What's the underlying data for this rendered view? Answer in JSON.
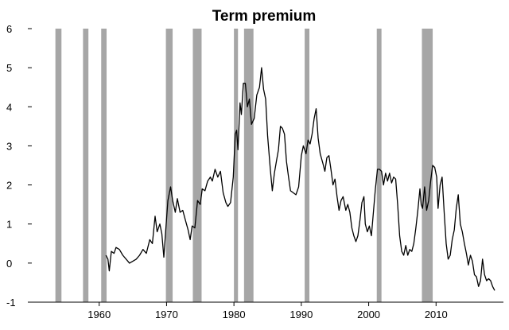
{
  "chart_data": {
    "type": "line",
    "title": "Term premium",
    "xlabel": "",
    "ylabel": "",
    "xlim": [
      1950,
      2020
    ],
    "ylim": [
      -1,
      6
    ],
    "x_ticks": [
      1960,
      1970,
      1980,
      1990,
      2000,
      2010
    ],
    "y_ticks": [
      -1,
      0,
      1,
      2,
      3,
      4,
      5,
      6
    ],
    "grid": false,
    "legend": "none",
    "colors": {
      "line": "#000000",
      "recession_band": "#a6a6a6"
    },
    "recession_bands": [
      [
        1953.5,
        1954.4
      ],
      [
        1957.6,
        1958.4
      ],
      [
        1960.3,
        1961.1
      ],
      [
        1969.9,
        1970.9
      ],
      [
        1973.9,
        1975.2
      ],
      [
        1980.0,
        1980.6
      ],
      [
        1981.5,
        1982.9
      ],
      [
        1990.5,
        1991.2
      ],
      [
        2001.2,
        2001.9
      ],
      [
        2007.9,
        2009.5
      ]
    ],
    "series": [
      {
        "values": [
          [
            1961.0,
            0.2
          ],
          [
            1961.3,
            0.1
          ],
          [
            1961.5,
            -0.2
          ],
          [
            1961.8,
            0.3
          ],
          [
            1962.2,
            0.25
          ],
          [
            1962.5,
            0.4
          ],
          [
            1963.0,
            0.35
          ],
          [
            1963.5,
            0.2
          ],
          [
            1964.0,
            0.1
          ],
          [
            1964.5,
            0.0
          ],
          [
            1965.0,
            0.05
          ],
          [
            1965.5,
            0.1
          ],
          [
            1966.0,
            0.2
          ],
          [
            1966.5,
            0.35
          ],
          [
            1967.0,
            0.25
          ],
          [
            1967.5,
            0.6
          ],
          [
            1967.9,
            0.5
          ],
          [
            1968.3,
            1.2
          ],
          [
            1968.6,
            0.8
          ],
          [
            1969.0,
            1.0
          ],
          [
            1969.3,
            0.75
          ],
          [
            1969.6,
            0.15
          ],
          [
            1969.9,
            0.9
          ],
          [
            1970.2,
            1.6
          ],
          [
            1970.6,
            1.95
          ],
          [
            1970.9,
            1.6
          ],
          [
            1971.3,
            1.3
          ],
          [
            1971.6,
            1.65
          ],
          [
            1972.0,
            1.3
          ],
          [
            1972.4,
            1.35
          ],
          [
            1972.8,
            1.1
          ],
          [
            1973.2,
            0.85
          ],
          [
            1973.5,
            0.6
          ],
          [
            1973.8,
            0.95
          ],
          [
            1974.2,
            0.9
          ],
          [
            1974.6,
            1.6
          ],
          [
            1975.0,
            1.5
          ],
          [
            1975.3,
            1.9
          ],
          [
            1975.7,
            1.85
          ],
          [
            1976.1,
            2.1
          ],
          [
            1976.5,
            2.2
          ],
          [
            1976.8,
            2.1
          ],
          [
            1977.2,
            2.4
          ],
          [
            1977.6,
            2.2
          ],
          [
            1978.0,
            2.35
          ],
          [
            1978.4,
            1.8
          ],
          [
            1978.8,
            1.55
          ],
          [
            1979.1,
            1.45
          ],
          [
            1979.5,
            1.55
          ],
          [
            1979.9,
            2.2
          ],
          [
            1980.2,
            3.3
          ],
          [
            1980.4,
            3.4
          ],
          [
            1980.6,
            2.9
          ],
          [
            1980.9,
            4.1
          ],
          [
            1981.1,
            3.8
          ],
          [
            1981.4,
            4.6
          ],
          [
            1981.7,
            4.6
          ],
          [
            1982.0,
            4.0
          ],
          [
            1982.3,
            4.2
          ],
          [
            1982.6,
            3.55
          ],
          [
            1983.0,
            3.7
          ],
          [
            1983.4,
            4.3
          ],
          [
            1983.8,
            4.5
          ],
          [
            1984.1,
            5.0
          ],
          [
            1984.4,
            4.45
          ],
          [
            1984.7,
            4.2
          ],
          [
            1985.0,
            3.25
          ],
          [
            1985.4,
            2.4
          ],
          [
            1985.7,
            1.85
          ],
          [
            1986.0,
            2.3
          ],
          [
            1986.3,
            2.6
          ],
          [
            1986.6,
            2.9
          ],
          [
            1986.9,
            3.5
          ],
          [
            1987.2,
            3.45
          ],
          [
            1987.5,
            3.3
          ],
          [
            1987.8,
            2.6
          ],
          [
            1988.1,
            2.2
          ],
          [
            1988.4,
            1.85
          ],
          [
            1988.8,
            1.8
          ],
          [
            1989.2,
            1.75
          ],
          [
            1989.6,
            1.95
          ],
          [
            1990.0,
            2.75
          ],
          [
            1990.3,
            3.0
          ],
          [
            1990.7,
            2.8
          ],
          [
            1991.0,
            3.15
          ],
          [
            1991.3,
            3.05
          ],
          [
            1991.6,
            3.3
          ],
          [
            1991.9,
            3.7
          ],
          [
            1992.2,
            3.95
          ],
          [
            1992.5,
            3.2
          ],
          [
            1992.8,
            2.8
          ],
          [
            1993.2,
            2.55
          ],
          [
            1993.5,
            2.35
          ],
          [
            1993.8,
            2.7
          ],
          [
            1994.1,
            2.75
          ],
          [
            1994.4,
            2.4
          ],
          [
            1994.7,
            2.0
          ],
          [
            1995.0,
            2.15
          ],
          [
            1995.3,
            1.7
          ],
          [
            1995.6,
            1.35
          ],
          [
            1995.9,
            1.6
          ],
          [
            1996.2,
            1.7
          ],
          [
            1996.6,
            1.35
          ],
          [
            1996.9,
            1.5
          ],
          [
            1997.2,
            1.3
          ],
          [
            1997.5,
            0.9
          ],
          [
            1997.8,
            0.7
          ],
          [
            1998.1,
            0.55
          ],
          [
            1998.4,
            0.7
          ],
          [
            1998.7,
            1.1
          ],
          [
            1999.0,
            1.55
          ],
          [
            1999.3,
            1.7
          ],
          [
            1999.5,
            1.0
          ],
          [
            1999.8,
            0.8
          ],
          [
            2000.1,
            0.95
          ],
          [
            2000.4,
            0.7
          ],
          [
            2000.7,
            1.3
          ],
          [
            2001.0,
            1.9
          ],
          [
            2001.3,
            2.4
          ],
          [
            2001.6,
            2.4
          ],
          [
            2001.9,
            2.35
          ],
          [
            2002.2,
            2.0
          ],
          [
            2002.5,
            2.3
          ],
          [
            2002.8,
            2.1
          ],
          [
            2003.1,
            2.3
          ],
          [
            2003.4,
            2.05
          ],
          [
            2003.7,
            2.2
          ],
          [
            2004.0,
            2.15
          ],
          [
            2004.3,
            1.5
          ],
          [
            2004.6,
            0.7
          ],
          [
            2004.9,
            0.3
          ],
          [
            2005.2,
            0.2
          ],
          [
            2005.5,
            0.45
          ],
          [
            2005.8,
            0.2
          ],
          [
            2006.1,
            0.35
          ],
          [
            2006.4,
            0.3
          ],
          [
            2006.7,
            0.5
          ],
          [
            2007.0,
            0.9
          ],
          [
            2007.3,
            1.35
          ],
          [
            2007.6,
            1.9
          ],
          [
            2007.8,
            1.5
          ],
          [
            2008.0,
            1.4
          ],
          [
            2008.3,
            1.95
          ],
          [
            2008.6,
            1.35
          ],
          [
            2008.9,
            1.6
          ],
          [
            2009.2,
            2.1
          ],
          [
            2009.5,
            2.5
          ],
          [
            2009.8,
            2.45
          ],
          [
            2010.1,
            2.2
          ],
          [
            2010.3,
            1.4
          ],
          [
            2010.6,
            2.0
          ],
          [
            2010.9,
            2.2
          ],
          [
            2011.2,
            1.3
          ],
          [
            2011.5,
            0.5
          ],
          [
            2011.8,
            0.1
          ],
          [
            2012.1,
            0.2
          ],
          [
            2012.4,
            0.6
          ],
          [
            2012.7,
            0.85
          ],
          [
            2013.0,
            1.4
          ],
          [
            2013.3,
            1.75
          ],
          [
            2013.6,
            1.0
          ],
          [
            2013.9,
            0.8
          ],
          [
            2014.2,
            0.5
          ],
          [
            2014.5,
            0.25
          ],
          [
            2014.8,
            -0.05
          ],
          [
            2015.1,
            0.2
          ],
          [
            2015.4,
            0.05
          ],
          [
            2015.7,
            -0.3
          ],
          [
            2016.0,
            -0.35
          ],
          [
            2016.3,
            -0.6
          ],
          [
            2016.6,
            -0.45
          ],
          [
            2016.9,
            0.1
          ],
          [
            2017.2,
            -0.3
          ],
          [
            2017.5,
            -0.45
          ],
          [
            2017.8,
            -0.4
          ],
          [
            2018.1,
            -0.45
          ],
          [
            2018.4,
            -0.6
          ],
          [
            2018.7,
            -0.7
          ]
        ]
      }
    ]
  }
}
